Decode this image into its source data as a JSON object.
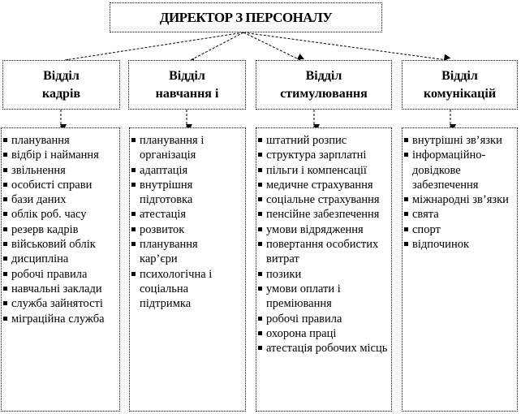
{
  "director": {
    "title": "ДИРЕКТОР З ПЕРСОНАЛУ"
  },
  "departments": [
    {
      "title": "Відділ кадрів",
      "items": [
        "планування",
        "відбір і наймання",
        "звільнення",
        "особисті справи",
        "бази даних",
        "облік роб. часу",
        "резерв кадрів",
        "військовий облік",
        "дисципліна",
        "робочі правила",
        "навчальні заклади",
        "служба зайнятості",
        "міграційна служба"
      ]
    },
    {
      "title": "Відділ навчання і",
      "items": [
        "планування і організація",
        "адаптація",
        "внутрішня підготовка",
        "атестація",
        "розвиток",
        "планування кар’єри",
        "психологічна і соціальна підтримка"
      ]
    },
    {
      "title": "Відділ стимулювання",
      "items": [
        "штатний розпис",
        "структура зарплатні",
        "пільги і компенсації",
        "медичне страхування",
        "соціальне страхування",
        "пенсійне забезпечення",
        "умови відрядження",
        "повертання особистих витрат",
        "позики",
        "умови оплати і преміювання",
        "робочі правила",
        "охорона праці",
        "атестація робочих місць"
      ]
    },
    {
      "title": "Відділ комунікацій",
      "items": [
        "внутрішні зв’язки",
        "інформаційно-довідкове забезпечення",
        "міжнародні зв’язки",
        "свята",
        "спорт",
        "відпочинок"
      ]
    }
  ]
}
